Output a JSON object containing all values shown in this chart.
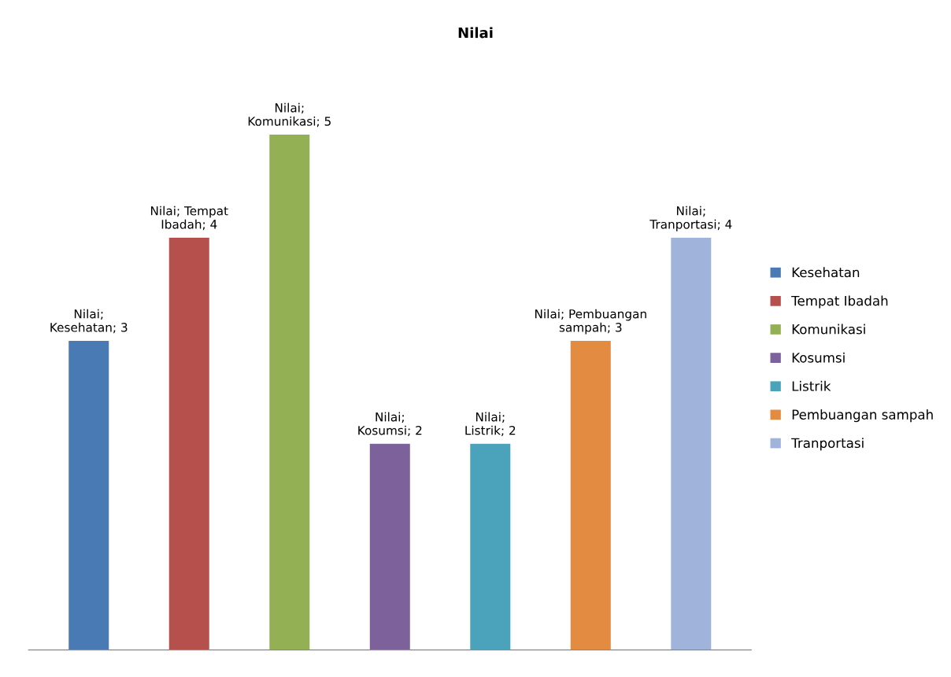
{
  "chart_data": {
    "type": "bar",
    "title": "Nilai",
    "categories": [
      null,
      null,
      null,
      null,
      null,
      null,
      null
    ],
    "series": [
      {
        "name": "Kesehatan",
        "color": "#4a7ab4",
        "values": [
          3,
          null,
          null,
          null,
          null,
          null,
          null
        ],
        "value_labels": [
          "Nilai; Kesehatan; 3",
          null,
          null,
          null,
          null,
          null,
          null
        ]
      },
      {
        "name": "Tempat Ibadah",
        "color": "#b5504c",
        "values": [
          null,
          4,
          null,
          null,
          null,
          null,
          null
        ],
        "value_labels": [
          null,
          "Nilai; Tempat Ibadah; 4",
          null,
          null,
          null,
          null,
          null
        ]
      },
      {
        "name": "Komunikasi",
        "color": "#94b055",
        "values": [
          null,
          null,
          5,
          null,
          null,
          null,
          null
        ],
        "value_labels": [
          null,
          null,
          "Nilai; Komunikasi; 5",
          null,
          null,
          null,
          null
        ]
      },
      {
        "name": "Kosumsi",
        "color": "#7d619a",
        "values": [
          null,
          null,
          null,
          2,
          null,
          null,
          null
        ],
        "value_labels": [
          null,
          null,
          null,
          "Nilai; Kosumsi; 2",
          null,
          null,
          null
        ]
      },
      {
        "name": "Listrik",
        "color": "#4aa2bb",
        "values": [
          null,
          null,
          null,
          null,
          2,
          null,
          null
        ],
        "value_labels": [
          null,
          null,
          null,
          null,
          "Nilai; Listrik; 2",
          null,
          null
        ]
      },
      {
        "name": "Pembuangan sampah",
        "color": "#e48b42",
        "values": [
          null,
          null,
          null,
          null,
          null,
          3,
          null
        ],
        "value_labels": [
          null,
          null,
          null,
          null,
          null,
          "Nilai; Pembuangan sampah; 3",
          null
        ]
      },
      {
        "name": "Tranportasi",
        "color": "#9fb3db",
        "values": [
          null,
          null,
          null,
          null,
          null,
          null,
          4
        ],
        "value_labels": [
          null,
          null,
          null,
          null,
          null,
          null,
          "Nilai; Tranportasi; 4"
        ]
      }
    ],
    "stacked": true,
    "legend": "right"
  }
}
